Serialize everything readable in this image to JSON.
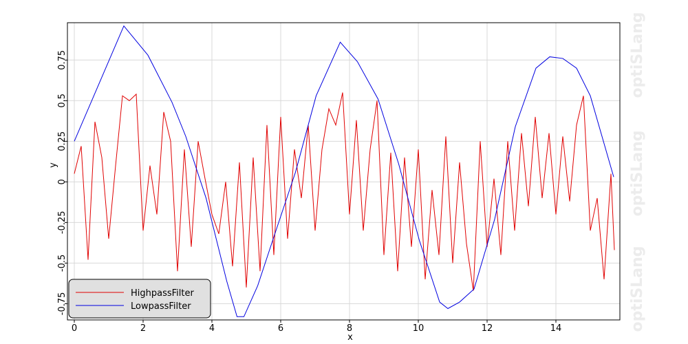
{
  "chart_data": {
    "type": "line",
    "watermark": "optiSLang",
    "xlabel": "x",
    "ylabel": "y",
    "xlim": [
      -0.2,
      15.86
    ],
    "ylim": [
      -0.85,
      0.98
    ],
    "xticks": [
      0,
      2,
      4,
      6,
      8,
      10,
      12,
      14
    ],
    "yticks": [
      -0.75,
      -0.5,
      -0.25,
      0,
      0.25,
      0.5,
      0.75
    ],
    "grid": true,
    "legend": "lower left",
    "series": [
      {
        "name": "HighpassFilter",
        "color": "#e00000",
        "x": [
          0,
          0.2,
          0.4,
          0.6,
          0.8,
          1.0,
          1.2,
          1.4,
          1.6,
          1.8,
          2.0,
          2.2,
          2.4,
          2.6,
          2.8,
          3.0,
          3.2,
          3.4,
          3.6,
          3.8,
          4.0,
          4.2,
          4.4,
          4.6,
          4.8,
          5.0,
          5.2,
          5.4,
          5.6,
          5.8,
          6.0,
          6.2,
          6.4,
          6.6,
          6.8,
          7.0,
          7.2,
          7.4,
          7.6,
          7.8,
          8.0,
          8.2,
          8.4,
          8.6,
          8.8,
          9.0,
          9.2,
          9.4,
          9.6,
          9.8,
          10.0,
          10.2,
          10.4,
          10.6,
          10.8,
          11.0,
          11.2,
          11.4,
          11.6,
          11.8,
          12.0,
          12.2,
          12.4,
          12.6,
          12.8,
          13.0,
          13.2,
          13.4,
          13.6,
          13.8,
          14.0,
          14.2,
          14.4,
          14.6,
          14.8,
          15.0,
          15.2,
          15.4,
          15.6,
          15.7
        ],
        "values": [
          0.05,
          0.22,
          -0.48,
          0.37,
          0.15,
          -0.35,
          0.1,
          0.53,
          0.5,
          0.54,
          -0.3,
          0.1,
          -0.2,
          0.43,
          0.25,
          -0.55,
          0.2,
          -0.4,
          0.25,
          0.02,
          -0.2,
          -0.32,
          0.0,
          -0.52,
          0.12,
          -0.65,
          0.15,
          -0.55,
          0.35,
          -0.45,
          0.4,
          -0.35,
          0.2,
          -0.1,
          0.35,
          -0.3,
          0.2,
          0.45,
          0.35,
          0.55,
          -0.2,
          0.38,
          -0.3,
          0.2,
          0.5,
          -0.45,
          0.18,
          -0.55,
          0.15,
          -0.4,
          0.2,
          -0.6,
          -0.05,
          -0.45,
          0.28,
          -0.5,
          0.12,
          -0.38,
          -0.67,
          0.25,
          -0.4,
          0.02,
          -0.45,
          0.25,
          -0.3,
          0.3,
          -0.15,
          0.4,
          -0.1,
          0.3,
          -0.2,
          0.28,
          -0.12,
          0.35,
          0.53,
          -0.3,
          -0.1,
          -0.6,
          0.05,
          -0.42
        ]
      },
      {
        "name": "LowpassFilter",
        "color": "#0000e0",
        "x": [
          0,
          1.44,
          2.14,
          2.84,
          3.24,
          3.83,
          4.43,
          4.73,
          4.93,
          5.33,
          5.83,
          6.43,
          7.03,
          7.73,
          8.23,
          8.83,
          9.43,
          10.03,
          10.62,
          10.86,
          11.2,
          11.62,
          12.22,
          12.82,
          13.42,
          13.82,
          14.2,
          14.6,
          15.0,
          15.68
        ],
        "values": [
          0.25,
          0.96,
          0.78,
          0.49,
          0.28,
          -0.1,
          -0.61,
          -0.83,
          -0.83,
          -0.64,
          -0.32,
          0.06,
          0.53,
          0.86,
          0.74,
          0.51,
          0.11,
          -0.36,
          -0.74,
          -0.78,
          -0.74,
          -0.66,
          -0.23,
          0.34,
          0.7,
          0.77,
          0.76,
          0.7,
          0.53,
          0.03
        ]
      }
    ]
  }
}
